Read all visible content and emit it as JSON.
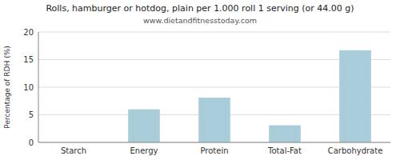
{
  "chart_data": {
    "type": "bar",
    "title": "Rolls, hamburger or hotdog, plain per 1.000 roll 1 serving (or 44.00 g)",
    "subtitle": "www.dietandfitnesstoday.com",
    "ylabel": "Percentage of RDH (%)",
    "categories": [
      "Starch",
      "Energy",
      "Protein",
      "Total-Fat",
      "Carbohydrate"
    ],
    "values": [
      0,
      6.0,
      8.1,
      3.1,
      16.7
    ],
    "color": "#a8cdd8",
    "ylim": [
      0,
      20
    ],
    "yticks": [
      0,
      5,
      10,
      15,
      20
    ],
    "grid": true
  }
}
